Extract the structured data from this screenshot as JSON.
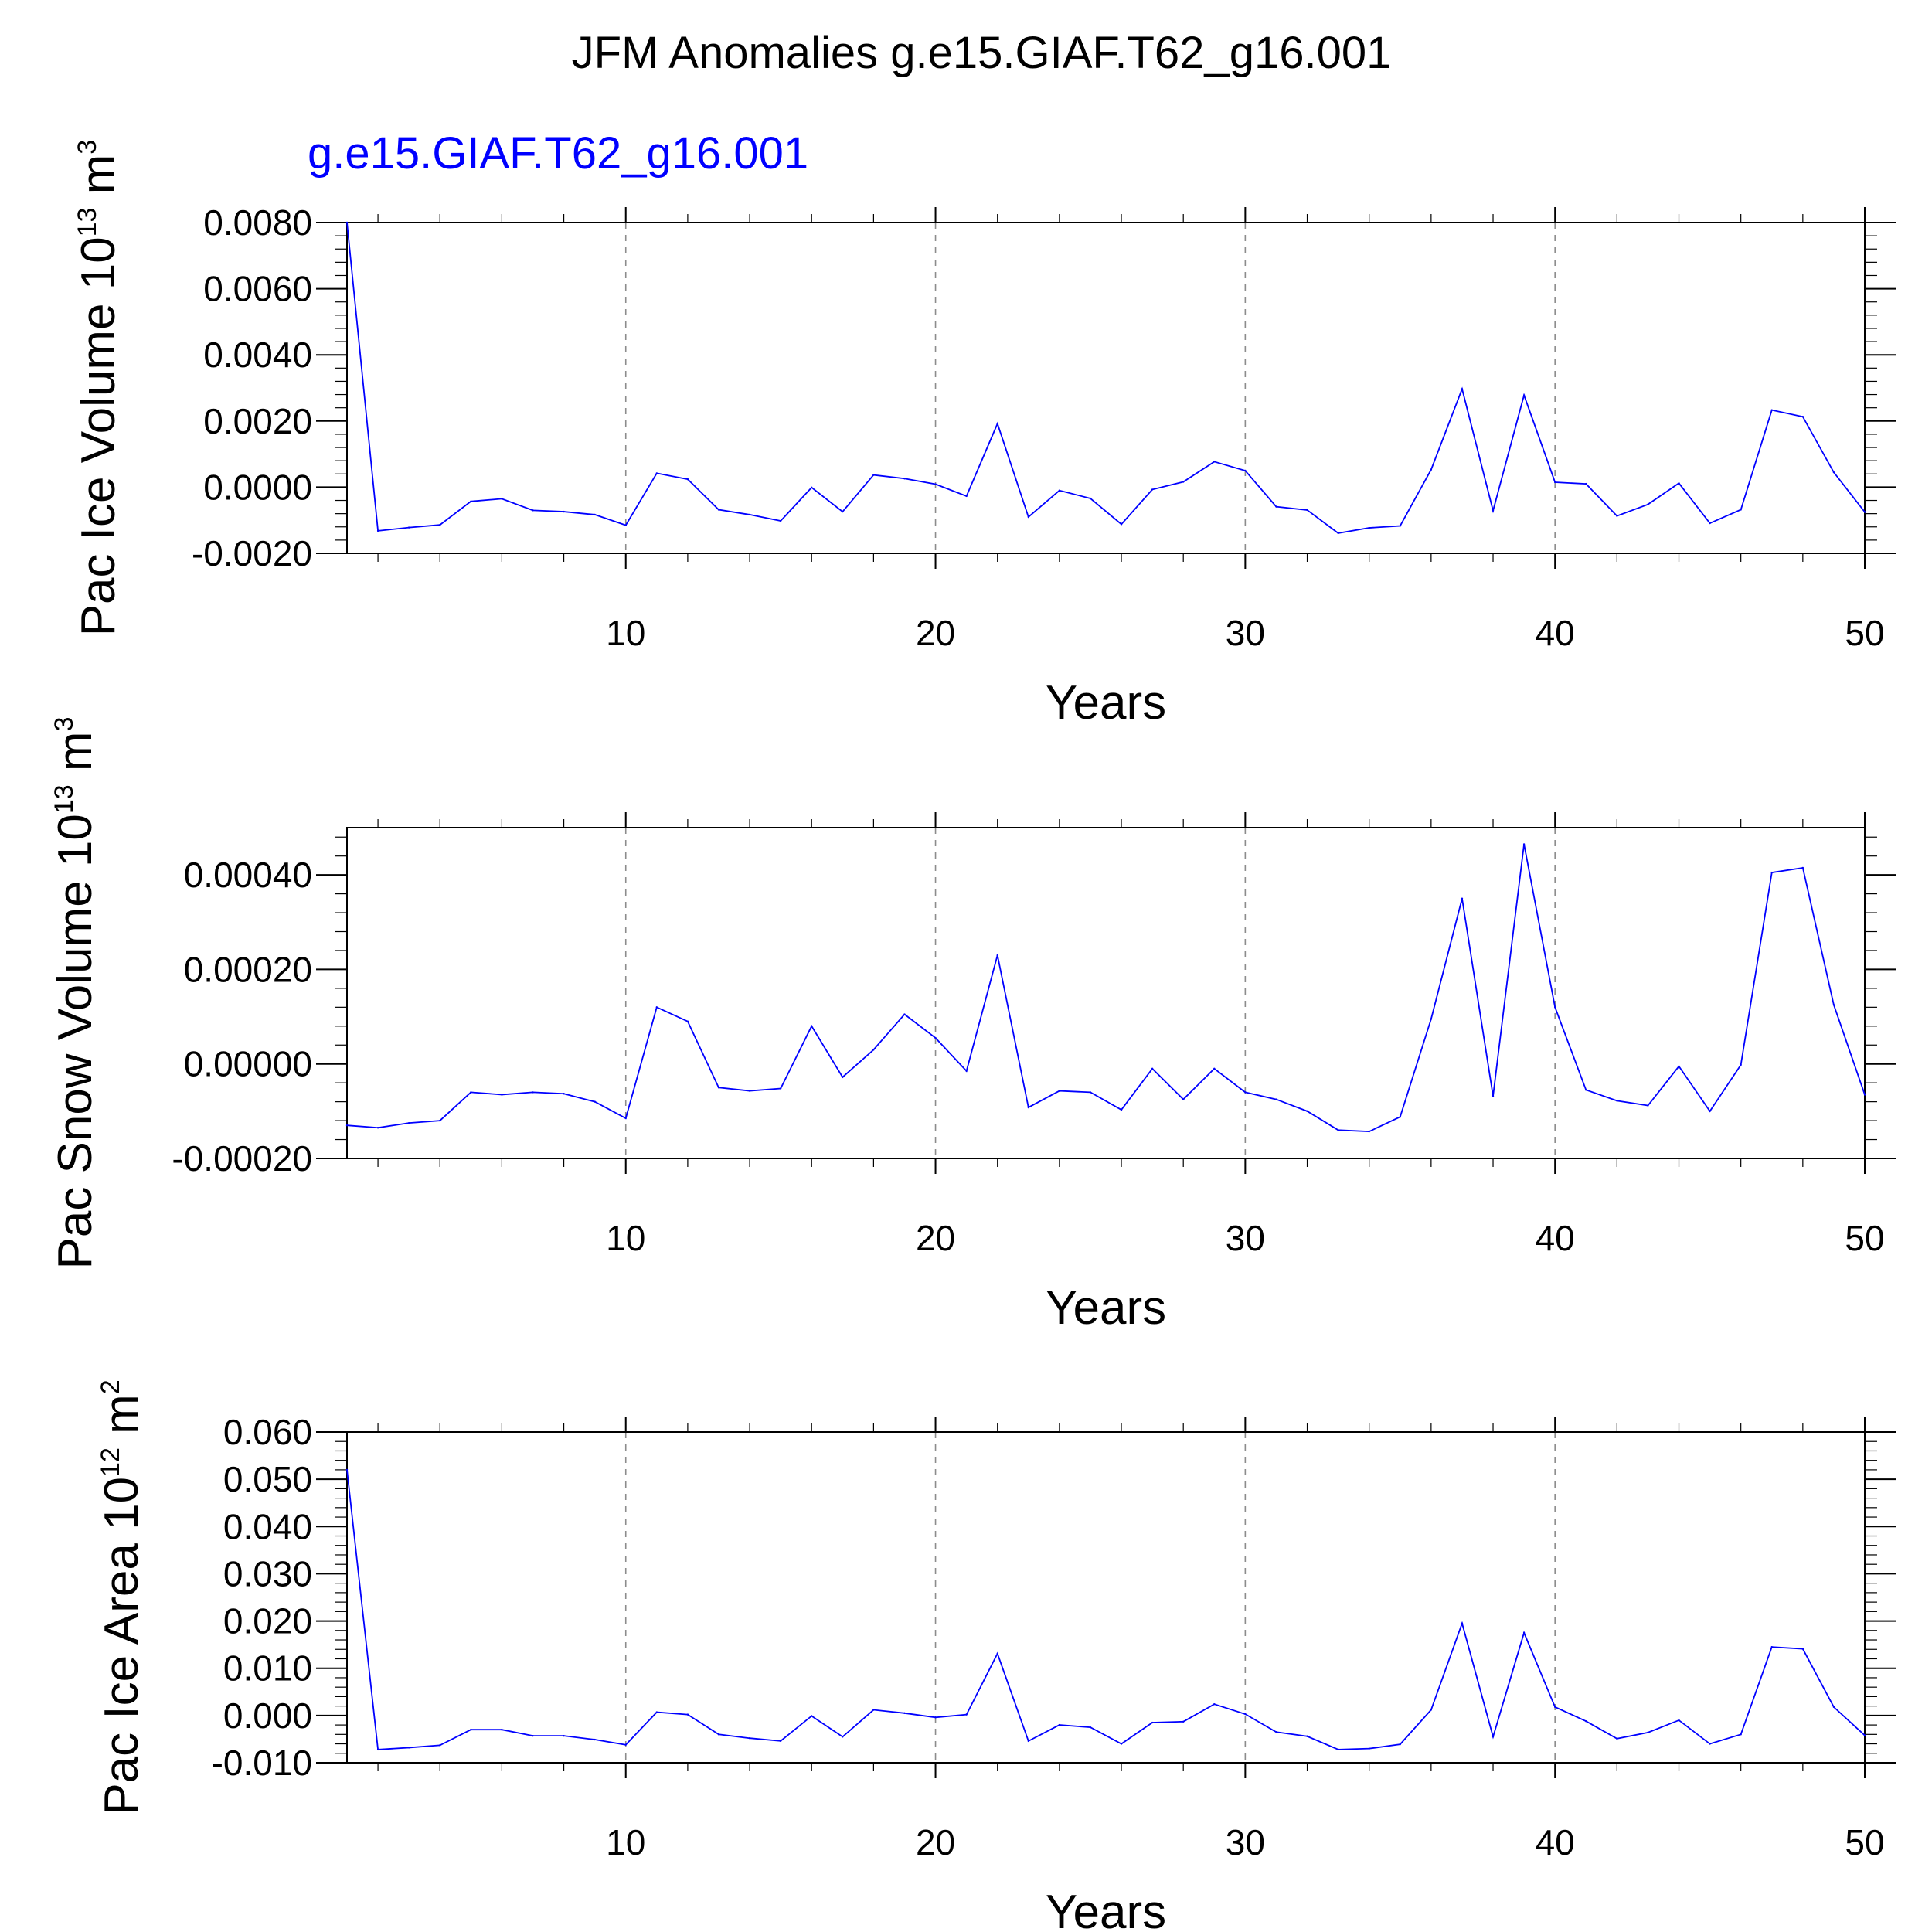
{
  "title": "JFM Anomalies g.e15.GIAF.T62_g16.001",
  "colors": {
    "series": "#0000ff",
    "text": "#000000"
  },
  "chart_data": [
    {
      "type": "line",
      "subtitle": "g.e15.GIAF.T62_g16.001",
      "ylabel_base": "Pac Ice Volume 10",
      "ylabel_exp": "13",
      "ylabel_unit": " m",
      "ylabel_unit_exp": "3",
      "xlabel": "Years",
      "xlim": [
        1,
        50
      ],
      "ylim": [
        -0.002,
        0.008
      ],
      "yticks": [
        -0.002,
        0.0,
        0.002,
        0.004,
        0.006,
        0.008
      ],
      "ytick_labels": [
        "-0.0020",
        "0.0000",
        "0.0020",
        "0.0040",
        "0.0060",
        "0.0080"
      ],
      "xticks": [
        10,
        20,
        30,
        40,
        50
      ],
      "xtick_labels": [
        "10",
        "20",
        "30",
        "40",
        "50"
      ],
      "grid": "vertical dashed at 10, 20, 30, 40",
      "series": [
        {
          "x": [
            1,
            2,
            3,
            4,
            5,
            6,
            7,
            8,
            9,
            10,
            11,
            12,
            13,
            14,
            15,
            16,
            17,
            18,
            19,
            20,
            21,
            22,
            23,
            24,
            25,
            26,
            27,
            28,
            29,
            30,
            31,
            32,
            33,
            34,
            35,
            36,
            37,
            38,
            39,
            40,
            41,
            42,
            43,
            44,
            45,
            46,
            47,
            48,
            49,
            50
          ],
          "values": [
            0.008,
            -0.00132,
            -0.00122,
            -0.00114,
            -0.00043,
            -0.00035,
            -0.0007,
            -0.00074,
            -0.00083,
            -0.00115,
            0.00042,
            0.00024,
            -0.00068,
            -0.00083,
            -0.00102,
            -1e-05,
            -0.00074,
            0.00037,
            0.00026,
            9e-05,
            -0.00027,
            0.00192,
            -0.0009,
            -0.0001,
            -0.00034,
            -0.00112,
            -7e-05,
            0.00016,
            0.00077,
            0.0005,
            -0.00059,
            -0.00069,
            -0.00139,
            -0.00123,
            -0.00117,
            0.00053,
            0.00297,
            -0.00071,
            0.00278,
            0.00015,
            0.0001,
            -0.00087,
            -0.00052,
            0.00012,
            -0.00109,
            -0.00068,
            0.00233,
            0.00213,
            0.00045,
            -0.00075
          ]
        }
      ]
    },
    {
      "type": "line",
      "ylabel_base": "Pac Snow Volume 10",
      "ylabel_exp": "13",
      "ylabel_unit": " m",
      "ylabel_unit_exp": "3",
      "xlabel": "Years",
      "xlim": [
        1,
        50
      ],
      "ylim": [
        -0.0002,
        0.0005
      ],
      "yticks": [
        -0.0002,
        0.0,
        0.0002,
        0.0004
      ],
      "ytick_labels": [
        "-0.00020",
        "0.00000",
        "0.00020",
        "0.00040"
      ],
      "xticks": [
        10,
        20,
        30,
        40,
        50
      ],
      "xtick_labels": [
        "10",
        "20",
        "30",
        "40",
        "50"
      ],
      "grid": "vertical dashed at 10, 20, 30, 40",
      "series": [
        {
          "x": [
            1,
            2,
            3,
            4,
            5,
            6,
            7,
            8,
            9,
            10,
            11,
            12,
            13,
            14,
            15,
            16,
            17,
            18,
            19,
            20,
            21,
            22,
            23,
            24,
            25,
            26,
            27,
            28,
            29,
            30,
            31,
            32,
            33,
            34,
            35,
            36,
            37,
            38,
            39,
            40,
            41,
            42,
            43,
            44,
            45,
            46,
            47,
            48,
            49,
            50
          ],
          "values": [
            -0.00013,
            -0.000135,
            -0.000125,
            -0.00012,
            -6e-05,
            -6.5e-05,
            -6e-05,
            -6.3e-05,
            -8e-05,
            -0.000115,
            0.00012,
            9e-05,
            -5e-05,
            -5.7e-05,
            -5.2e-05,
            8e-05,
            -2.8e-05,
            3e-05,
            0.000105,
            5.5e-05,
            -1.5e-05,
            0.00023,
            -9.2e-05,
            -5.7e-05,
            -6e-05,
            -9.7e-05,
            -1e-05,
            -7.5e-05,
            -1e-05,
            -6e-05,
            -7.5e-05,
            -0.0001,
            -0.00014,
            -0.000143,
            -0.000112,
            9.5e-05,
            0.00035,
            -6.8e-05,
            0.000465,
            0.00012,
            -5.5e-05,
            -7.8e-05,
            -8.8e-05,
            -5e-06,
            -0.0001,
            -2e-06,
            0.000405,
            0.000415,
            0.000125,
            -6.5e-05
          ]
        }
      ]
    },
    {
      "type": "line",
      "ylabel_base": "Pac Ice Area 10",
      "ylabel_exp": "12",
      "ylabel_unit": " m",
      "ylabel_unit_exp": "2",
      "xlabel": "Years",
      "xlim": [
        1,
        50
      ],
      "ylim": [
        -0.01,
        0.06
      ],
      "yticks": [
        -0.01,
        0.0,
        0.01,
        0.02,
        0.03,
        0.04,
        0.05,
        0.06
      ],
      "ytick_labels": [
        "-0.010",
        "0.000",
        "0.010",
        "0.020",
        "0.030",
        "0.040",
        "0.050",
        "0.060"
      ],
      "xticks": [
        10,
        20,
        30,
        40,
        50
      ],
      "xtick_labels": [
        "10",
        "20",
        "30",
        "40",
        "50"
      ],
      "grid": "vertical dashed at 10, 20, 30, 40",
      "series": [
        {
          "x": [
            1,
            2,
            3,
            4,
            5,
            6,
            7,
            8,
            9,
            10,
            11,
            12,
            13,
            14,
            15,
            16,
            17,
            18,
            19,
            20,
            21,
            22,
            23,
            24,
            25,
            26,
            27,
            28,
            29,
            30,
            31,
            32,
            33,
            34,
            35,
            36,
            37,
            38,
            39,
            40,
            41,
            42,
            43,
            44,
            45,
            46,
            47,
            48,
            49,
            50
          ],
          "values": [
            0.052,
            -0.0072,
            -0.0068,
            -0.0063,
            -0.003,
            -0.003,
            -0.0043,
            -0.0043,
            -0.0051,
            -0.0062,
            0.0007,
            0.0002,
            -0.004,
            -0.0048,
            -0.0054,
            -0.0001,
            -0.0045,
            0.0012,
            0.0005,
            -0.0004,
            0.0002,
            0.0131,
            -0.0054,
            -0.002,
            -0.0025,
            -0.006,
            -0.0015,
            -0.0013,
            0.0024,
            0.0003,
            -0.0035,
            -0.0044,
            -0.0072,
            -0.007,
            -0.0061,
            0.0012,
            0.0195,
            -0.0045,
            0.0175,
            0.0018,
            -0.0012,
            -0.0049,
            -0.0036,
            -0.001,
            -0.006,
            -0.004,
            0.0145,
            0.0141,
            0.0018,
            -0.0042
          ]
        }
      ]
    }
  ]
}
